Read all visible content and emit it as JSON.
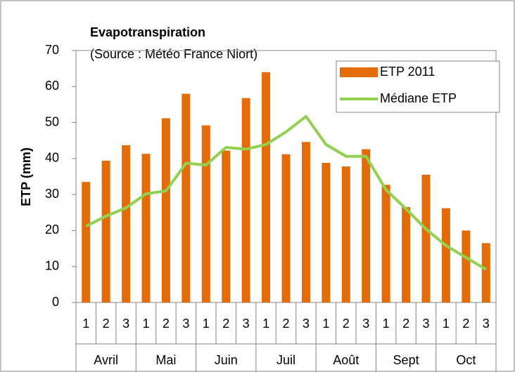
{
  "chart_data": {
    "type": "bar_line",
    "title": "Evapotranspiration",
    "subtitle": "(Source : Météo France Niort)",
    "y_label": "ETP (mm)",
    "categories": [
      "1",
      "2",
      "3",
      "1",
      "2",
      "3",
      "1",
      "2",
      "3",
      "1",
      "2",
      "3",
      "1",
      "2",
      "3",
      "1",
      "2",
      "3",
      "1",
      "2",
      "3"
    ],
    "category_groups": [
      "Avril",
      "Mai",
      "Juin",
      "Juil",
      "Août",
      "Sept",
      "Oct"
    ],
    "series": [
      {
        "name": "ETP 2011",
        "type": "bar",
        "color": "#e36c09",
        "values": [
          33.5,
          39.4,
          43.7,
          41.3,
          51.2,
          58,
          49.2,
          42.2,
          56.8,
          64,
          41.2,
          44.6,
          38.8,
          37.8,
          42.6,
          32.7,
          26.5,
          35.5,
          26.2,
          20,
          16.5
        ]
      },
      {
        "name": "Médiane ETP",
        "type": "line",
        "color": "#92d050",
        "values": [
          21.2,
          24,
          26.3,
          30.2,
          31,
          38.7,
          38.2,
          43.1,
          42.6,
          43.9,
          47.4,
          51.7,
          43.9,
          40.6,
          40.6,
          31.3,
          26,
          20.4,
          15.8,
          12.5,
          9.2
        ]
      }
    ],
    "ylim": [
      0,
      70
    ],
    "yticks": [
      0,
      10,
      20,
      30,
      40,
      50,
      60,
      70
    ],
    "legend": "upper right"
  }
}
